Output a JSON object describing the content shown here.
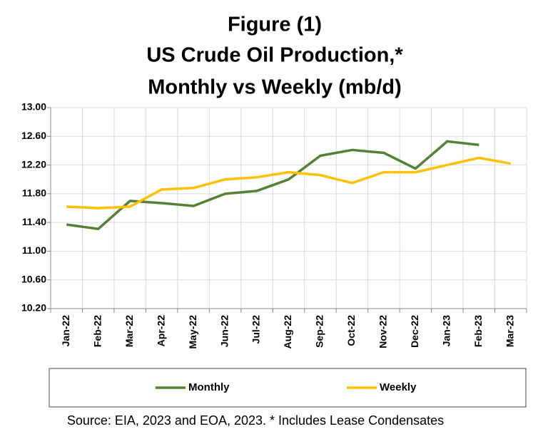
{
  "chart_data": {
    "type": "line",
    "title": [
      "Figure (1)",
      "US Crude Oil Production,*",
      "Monthly vs Weekly (mb/d)"
    ],
    "source": "Source: EIA, 2023 and EOA, 2023. * Includes Lease Condensates",
    "categories": [
      "Jan-22",
      "Feb-22",
      "Mar-22",
      "Apr-22",
      "May-22",
      "Jun-22",
      "Jul-22",
      "Aug-22",
      "Sep-22",
      "Oct-22",
      "Nov-22",
      "Dec-22",
      "Jan-23",
      "Feb-23",
      "Mar-23"
    ],
    "series": [
      {
        "name": "Monthly",
        "color": "#548235",
        "values": [
          11.37,
          11.31,
          11.7,
          11.67,
          11.63,
          11.8,
          11.84,
          12.0,
          12.33,
          12.41,
          12.37,
          12.15,
          12.53,
          12.48,
          null
        ]
      },
      {
        "name": "Weekly",
        "color": "#ffc000",
        "values": [
          11.62,
          11.6,
          11.62,
          11.86,
          11.88,
          12.0,
          12.03,
          12.1,
          12.06,
          11.95,
          12.1,
          12.1,
          12.2,
          12.3,
          12.22
        ]
      }
    ],
    "ylim": [
      10.2,
      13.0
    ],
    "yticks": [
      {
        "value": 10.2,
        "label": "10.20"
      },
      {
        "value": 10.6,
        "label": "10.60"
      },
      {
        "value": 11.0,
        "label": "11.00"
      },
      {
        "value": 11.4,
        "label": "11.40"
      },
      {
        "value": 11.8,
        "label": "11.80"
      },
      {
        "value": 12.2,
        "label": "12.20"
      },
      {
        "value": 12.6,
        "label": "12.60"
      },
      {
        "value": 13.0,
        "label": "13.00"
      }
    ],
    "grid": true
  }
}
